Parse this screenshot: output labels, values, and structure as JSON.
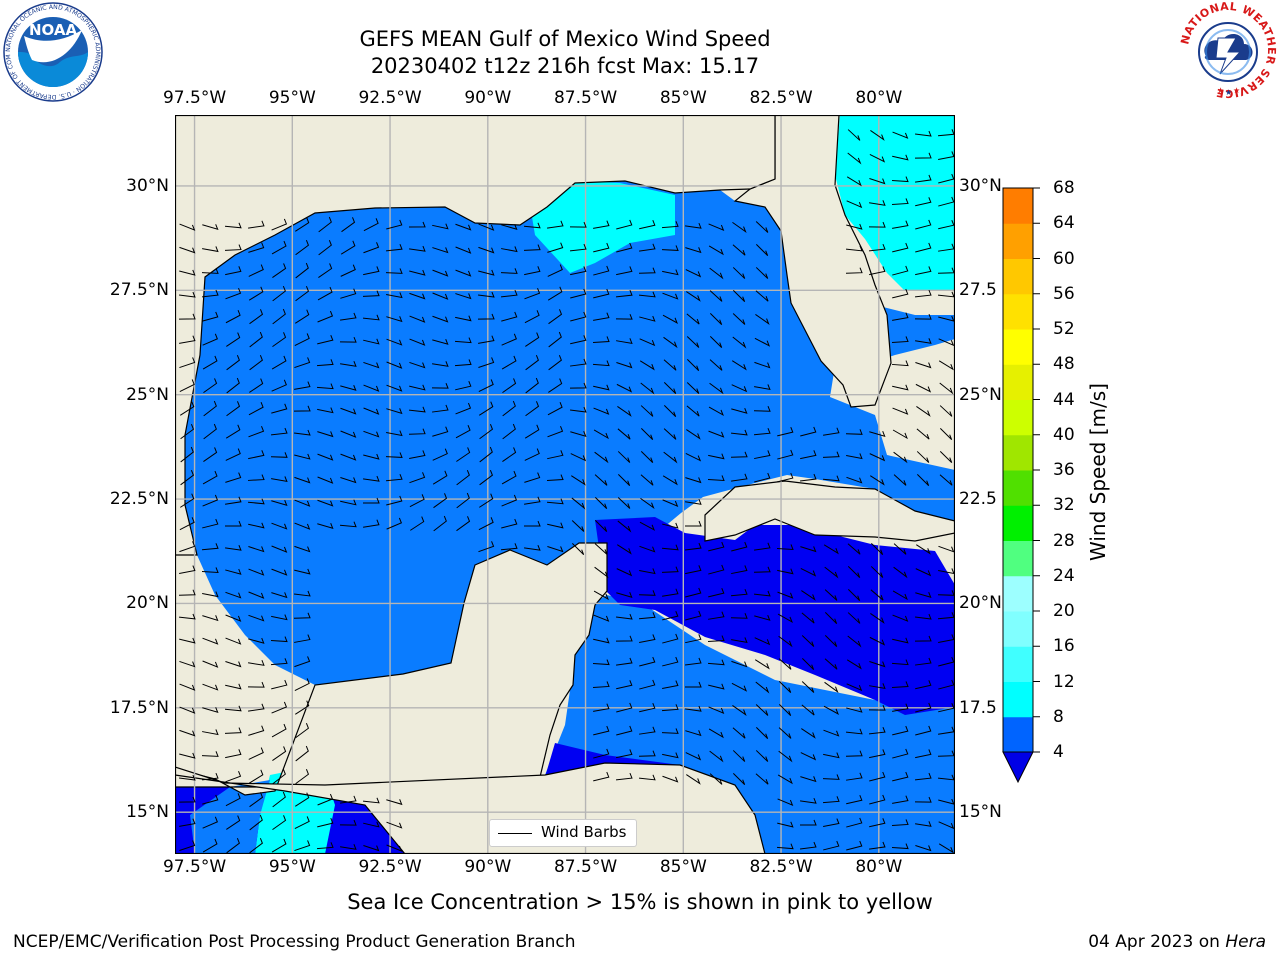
{
  "title": {
    "line1": "GEFS MEAN Gulf of Mexico Wind Speed",
    "line2": "20230402 t12z 216h fcst   Max: 15.17"
  },
  "lon_ticks": [
    "97.5°W",
    "95°W",
    "92.5°W",
    "90°W",
    "87.5°W",
    "85°W",
    "82.5°W",
    "80°W"
  ],
  "lat_ticks_left": [
    "30°N",
    "27.5°N",
    "25°N",
    "22.5°N",
    "20°N",
    "17.5°N",
    "15°N"
  ],
  "lat_ticks_right": [
    "30°N",
    "27.5",
    "25°N",
    "22.5",
    "20°N",
    "17.5",
    "15°N"
  ],
  "legend": {
    "label": "Wind Barbs"
  },
  "colorbar": {
    "title": "Wind Speed [m/s]",
    "labels": [
      "68",
      "64",
      "60",
      "56",
      "52",
      "48",
      "44",
      "40",
      "36",
      "32",
      "28",
      "24",
      "20",
      "16",
      "12",
      "8",
      "4"
    ],
    "levels": [
      4,
      8,
      12,
      16,
      20,
      24,
      28,
      32,
      36,
      40,
      44,
      48,
      52,
      56,
      60,
      64,
      68
    ],
    "colors": [
      "#0064ff",
      "#00ffff",
      "#40ffff",
      "#80ffff",
      "#9dffff",
      "#50ff80",
      "#00f000",
      "#50e000",
      "#a0e600",
      "#cdff00",
      "#e6f000",
      "#ffff00",
      "#ffe100",
      "#ffc800",
      "#ffa000",
      "#ff7d00",
      "#ff4b00",
      "#ff0000"
    ],
    "under_color": "#0000e6"
  },
  "map_colors": {
    "land": "#eeecdc",
    "speed_0_4": "#0000f2",
    "speed_4_8": "#0a7cff",
    "speed_8_12": "#00ffff",
    "grid": "#b5b5b5"
  },
  "caption": "Sea Ice Concentration > 15% is shown in pink to yellow",
  "footer": {
    "left": "NCEP/EMC/Verification Post Processing Product Generation Branch",
    "right_date": "04 Apr 2023 on ",
    "right_host": "Hera"
  },
  "logos": {
    "noaa_text": "NOAA",
    "noaa_ring": "NATIONAL OCEANIC AND ATMOSPHERIC ADMINISTRATION · U.S. DEPARTMENT OF COMMERCE",
    "nws_ring": "NATIONAL WEATHER SERVICE"
  }
}
